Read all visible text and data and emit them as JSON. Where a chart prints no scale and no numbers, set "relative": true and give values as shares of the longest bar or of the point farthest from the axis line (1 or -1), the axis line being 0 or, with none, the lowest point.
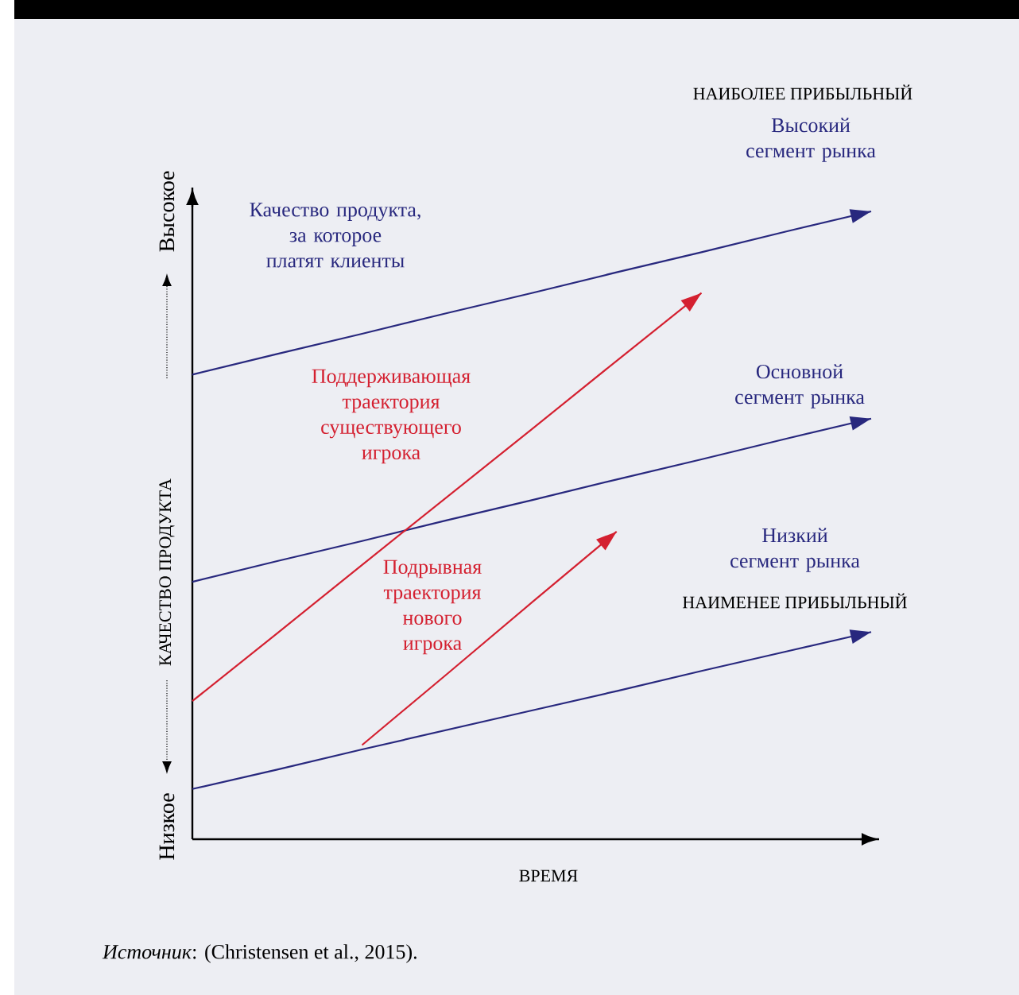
{
  "chart_data": {
    "type": "line",
    "relative": true,
    "xlabel": "ВРЕМЯ",
    "ylabel": "КАЧЕСТВО ПРОДУКТА",
    "categories": [
      null,
      null,
      null,
      null,
      null,
      null,
      null,
      null,
      null
    ],
    "series": [
      {
        "name": "Высокий сегмент рынка",
        "color": "#28287e",
        "values": [
          0.74,
          0.773,
          0.805,
          0.838,
          0.87,
          0.903,
          0.935,
          0.968,
          1
        ]
      },
      {
        "name": "Основной сегмент рынка",
        "color": "#28287e",
        "values": [
          0.41,
          0.443,
          0.475,
          0.508,
          0.54,
          0.573,
          0.605,
          0.638,
          0.67
        ]
      },
      {
        "name": "Низкий сегмент рынка",
        "color": "#28287e",
        "values": [
          0.08,
          0.111,
          0.143,
          0.174,
          0.205,
          0.236,
          0.268,
          0.299,
          0.33
        ]
      },
      {
        "name": "Поддерживающая траектория существующего игрока",
        "color": "#d42030",
        "values": [
          0.22,
          0.328,
          0.437,
          0.545,
          0.653,
          0.762,
          0.87,
          null,
          null
        ]
      },
      {
        "name": "Подрывная траектория нового игрока",
        "color": "#d42030",
        "values": [
          null,
          null,
          0.15,
          0.263,
          0.377,
          0.49,
          null,
          null,
          null
        ]
      }
    ],
    "annotations": [
      "Качество продукта, за которое платят клиенты",
      "НАИБОЛЕЕ ПРИБЫЛЬНЫЙ",
      "НАИМЕНЕЕ ПРИБЫЛЬНЫЙ",
      "Высокое",
      "Низкое",
      "*Источник*: (Christensen et al., 2015)."
    ]
  }
}
